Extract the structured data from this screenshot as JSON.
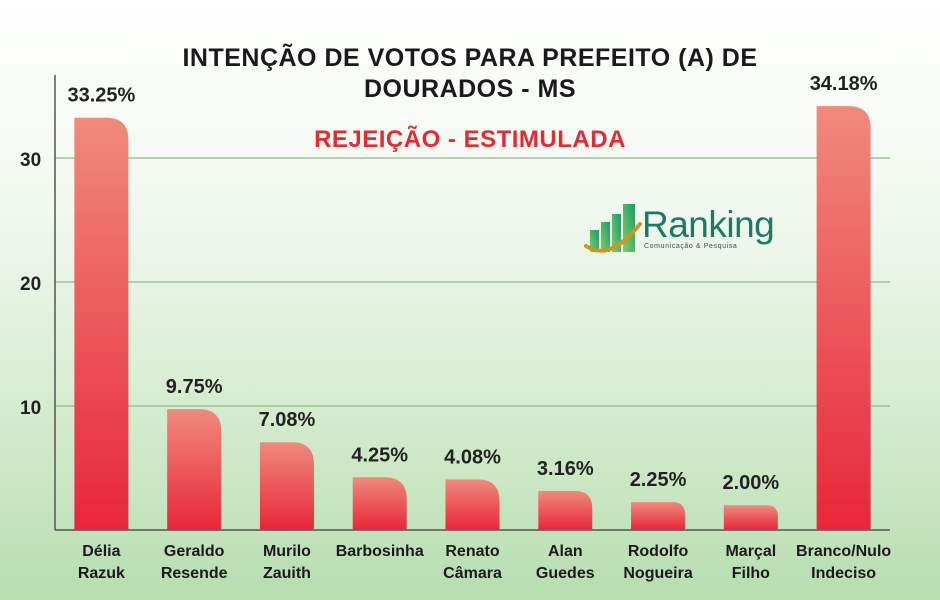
{
  "title_lines": [
    "INTENÇÃO DE VOTOS PARA PREFEITO (A) DE",
    "DOURADOS - MS"
  ],
  "subtitle": "REJEIÇÃO - ESTIMULADA",
  "logo": {
    "name": "Ranking",
    "tagline": "Comunicação & Pesquisa"
  },
  "colors": {
    "bar_top": "#f08a7c",
    "bar_bottom": "#e8263a",
    "subtitle": "#e22b33",
    "logo_green": "#1b7a63",
    "logo_gold": "#c9962a",
    "axis": "#555555"
  },
  "chart_data": {
    "type": "bar",
    "title": "INTENÇÃO DE VOTOS PARA PREFEITO (A) DE DOURADOS - MS",
    "subtitle": "REJEIÇÃO - ESTIMULADA",
    "categories": [
      [
        "Délia",
        "Razuk"
      ],
      [
        "Geraldo",
        "Resende"
      ],
      [
        "Murilo",
        "Zauith"
      ],
      [
        "Barbosinha"
      ],
      [
        "Renato",
        "Câmara"
      ],
      [
        "Alan",
        "Guedes"
      ],
      [
        "Rodolfo",
        "Nogueira"
      ],
      [
        "Marçal",
        "Filho"
      ],
      [
        "Branco/Nulo",
        "Indeciso"
      ]
    ],
    "values": [
      33.25,
      9.75,
      7.08,
      4.25,
      4.08,
      3.16,
      2.25,
      2.0,
      34.18
    ],
    "value_labels": [
      "33.25%",
      "9.75%",
      "7.08%",
      "4.25%",
      "4.08%",
      "3.16%",
      "2.25%",
      "2.00%",
      "34.18%"
    ],
    "yticks": [
      10,
      20,
      30
    ],
    "ylim": [
      0,
      36
    ],
    "grid": true,
    "legend": "none"
  }
}
